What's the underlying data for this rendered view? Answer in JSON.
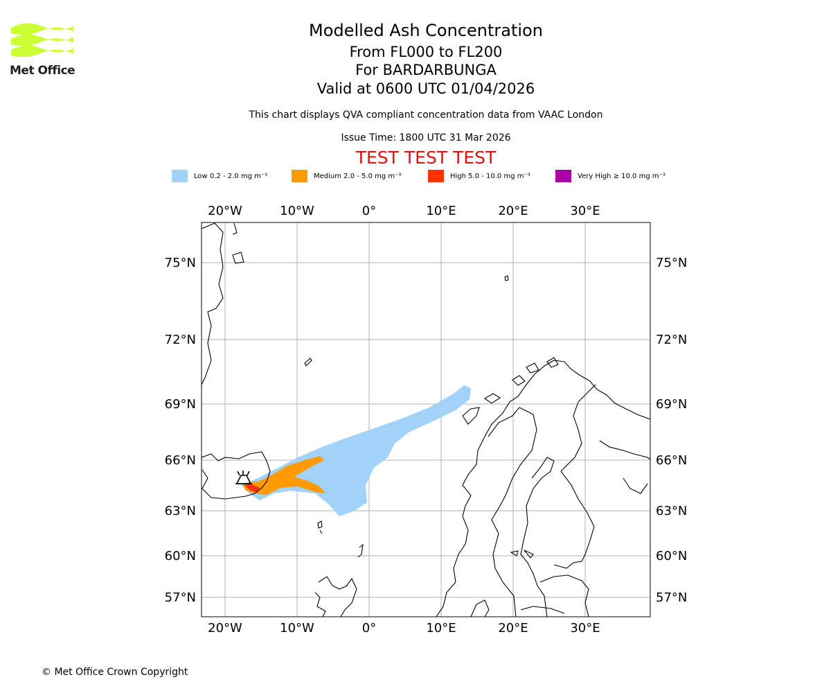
{
  "header": {
    "title": "Modelled Ash Concentration",
    "levels": "From FL000 to FL200",
    "volcano": "For BARDARBUNGA",
    "valid": "Valid at 0600 UTC 01/04/2026",
    "note": "This chart displays QVA compliant concentration data from VAAC London",
    "issue": "Issue Time: 1800 UTC 31 Mar 2026",
    "test_banner": "TEST TEST TEST"
  },
  "logo": {
    "text": "Met Office",
    "color": "#ccff33"
  },
  "legend": [
    {
      "label": "Low 0.2 - 2.0 mg m⁻³",
      "color": "#a0d2fa"
    },
    {
      "label": "Medium 2.0 - 5.0 mg m⁻³",
      "color": "#ff9a00"
    },
    {
      "label": "High 5.0 - 10.0 mg m⁻³",
      "color": "#ff3300"
    },
    {
      "label": "Very High ≥ 10.0 mg m⁻³",
      "color": "#aa00aa"
    }
  ],
  "map": {
    "lon_labels": [
      "20°W",
      "10°W",
      "0°",
      "10°E",
      "20°E",
      "30°E"
    ],
    "lat_labels": [
      "75°N",
      "72°N",
      "69°N",
      "66°N",
      "63°N",
      "60°N",
      "57°N"
    ],
    "volcano_name": "BARDARBUNGA"
  },
  "footer": {
    "copyright": "© Met Office Crown Copyright"
  }
}
